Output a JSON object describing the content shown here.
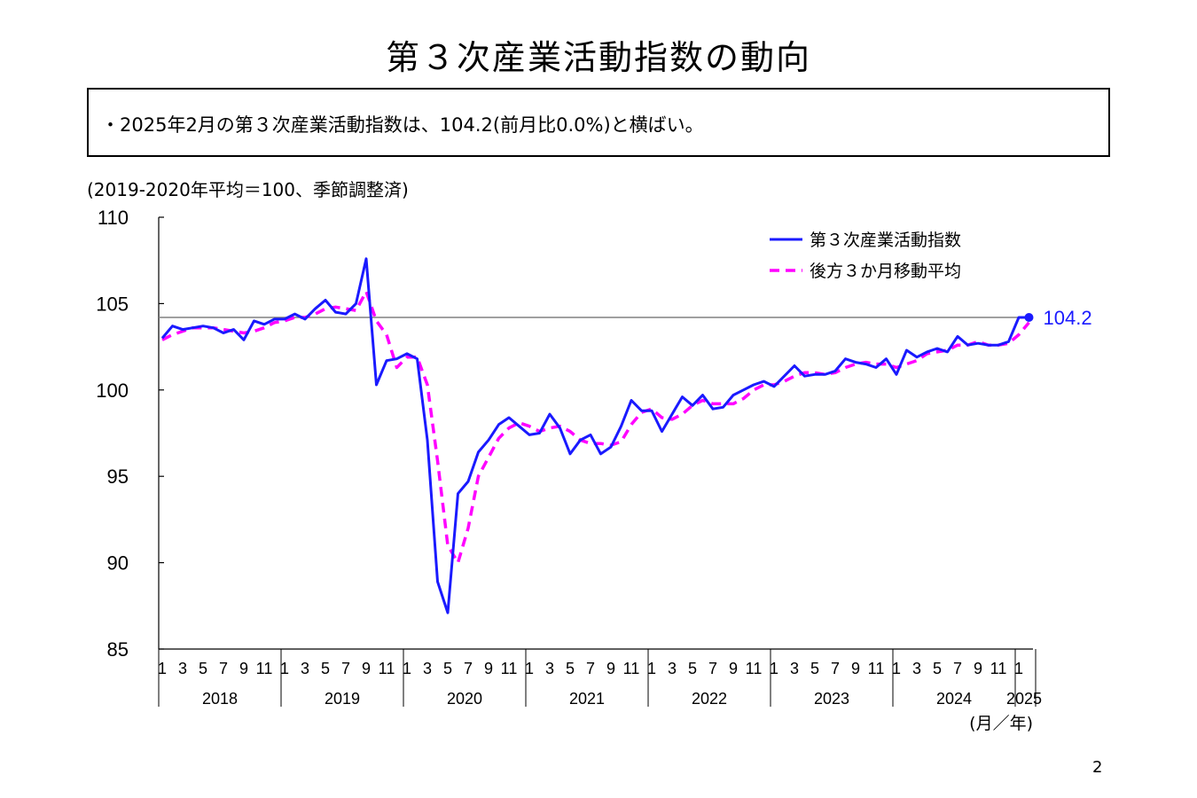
{
  "title": "第３次産業活動指数の動向",
  "summary": "・2025年2月の第３次産業活動指数は、104.2(前月比0.0%)と横ばい。",
  "unit_note": "(2019-2020年平均＝100、季節調整済)",
  "page_number": "2",
  "colors": {
    "index": "#1a1aff",
    "moving_avg": "#ff00ff",
    "reference": "#808080",
    "label": "#1a1aff"
  },
  "chart_data": {
    "type": "line",
    "title": "",
    "ylim": [
      85,
      110
    ],
    "y_ticks": [
      "110",
      "105",
      "100",
      "95",
      "90",
      "85"
    ],
    "x_unit_label": "(月／年)",
    "month_ticks": [
      "1",
      "3",
      "5",
      "7",
      "9",
      "11"
    ],
    "years": [
      "2018",
      "2019",
      "2020",
      "2021",
      "2022",
      "2023",
      "2024",
      "2025"
    ],
    "last_month_tick": "1",
    "reference_value": 104.2,
    "last_label": "104.2",
    "legend": [
      {
        "name": "第３次産業活動指数",
        "style": "solid"
      },
      {
        "name": "後方３か月移動平均",
        "style": "dashed"
      }
    ],
    "series": [
      {
        "name": "第３次産業活動指数",
        "values": [
          103.0,
          103.7,
          103.5,
          103.6,
          103.7,
          103.6,
          103.3,
          103.5,
          102.9,
          104.0,
          103.8,
          104.1,
          104.1,
          104.4,
          104.1,
          104.7,
          105.2,
          104.5,
          104.4,
          105.0,
          107.6,
          100.3,
          101.7,
          101.8,
          102.1,
          101.8,
          97.1,
          88.9,
          87.1,
          94.0,
          94.7,
          96.4,
          97.1,
          98.0,
          98.4,
          97.9,
          97.4,
          97.5,
          98.6,
          97.8,
          96.3,
          97.1,
          97.4,
          96.3,
          96.7,
          97.9,
          99.4,
          98.8,
          98.8,
          97.6,
          98.6,
          99.6,
          99.1,
          99.7,
          98.9,
          99.0,
          99.7,
          100.0,
          100.3,
          100.5,
          100.2,
          100.8,
          101.4,
          100.8,
          100.9,
          100.9,
          101.1,
          101.8,
          101.6,
          101.5,
          101.3,
          101.8,
          100.9,
          102.3,
          101.9,
          102.2,
          102.4,
          102.2,
          103.1,
          102.6,
          102.7,
          102.6,
          102.6,
          102.8,
          104.2,
          104.2
        ]
      },
      {
        "name": "後方３か月移動平均",
        "values": [
          102.9,
          103.2,
          103.4,
          103.6,
          103.6,
          103.6,
          103.5,
          103.4,
          103.3,
          103.4,
          103.6,
          103.9,
          104.0,
          104.2,
          104.2,
          104.4,
          104.7,
          104.8,
          104.7,
          104.6,
          105.7,
          104.0,
          103.2,
          101.3,
          101.9,
          101.9,
          100.3,
          95.9,
          91.0,
          90.0,
          92.0,
          95.0,
          96.1,
          97.2,
          97.8,
          98.1,
          97.9,
          97.6,
          97.8,
          97.9,
          97.6,
          97.1,
          96.9,
          96.9,
          96.8,
          97.0,
          98.0,
          98.7,
          98.9,
          98.4,
          98.3,
          98.6,
          99.1,
          99.4,
          99.2,
          99.2,
          99.2,
          99.5,
          100.0,
          100.3,
          100.3,
          100.5,
          100.8,
          101.0,
          101.0,
          100.9,
          101.0,
          101.3,
          101.5,
          101.6,
          101.5,
          101.5,
          101.3,
          101.5,
          101.7,
          102.1,
          102.2,
          102.3,
          102.6,
          102.6,
          102.8,
          102.6,
          102.6,
          102.7,
          103.2,
          103.9
        ]
      }
    ]
  }
}
